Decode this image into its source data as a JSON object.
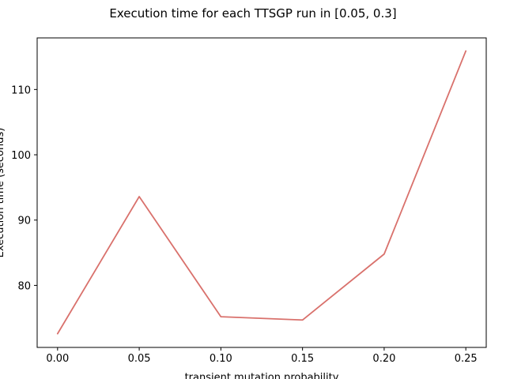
{
  "chart_data": {
    "type": "line",
    "title": "Execution time for each TTSGP run in [0.05, 0.3]",
    "xlabel": "transient mutation probability",
    "ylabel": "Execution time (seconds)",
    "x": [
      0.0,
      0.05,
      0.1,
      0.15,
      0.2,
      0.25
    ],
    "x_tick_labels": [
      "0.00",
      "0.05",
      "0.10",
      "0.15",
      "0.20",
      "0.25"
    ],
    "y_ticks": [
      80,
      90,
      100,
      110
    ],
    "y_tick_labels": [
      "80",
      "90",
      "100",
      "110"
    ],
    "xlim": [
      -0.0125,
      0.2625
    ],
    "ylim": [
      70.5,
      117.9
    ],
    "grid": false,
    "series": [
      {
        "values": [
          72.6,
          93.6,
          75.2,
          74.7,
          84.8,
          115.9
        ],
        "color": "#d9716c"
      }
    ]
  }
}
